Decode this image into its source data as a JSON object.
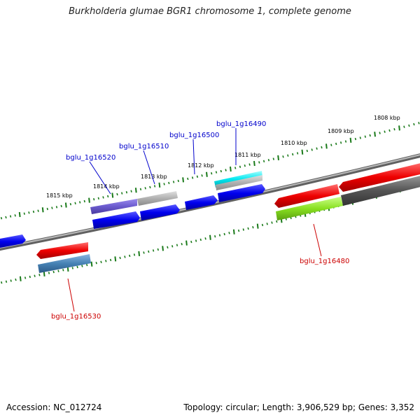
{
  "title": "Burkholderia glumae BGR1 chromosome 1, complete genome",
  "footer": {
    "accession": "Accession: NC_012724",
    "summary": "Topology: circular; Length: 3,906,529 bp; Genes: 3,352"
  },
  "scale_labels": [
    "1808 kbp",
    "1809 kbp",
    "1810 kbp",
    "1811 kbp",
    "1812 kbp",
    "1813 kbp",
    "1814 kbp",
    "1815 kbp"
  ],
  "gene_labels": {
    "g16490": "bglu_1g16490",
    "g16500": "bglu_1g16500",
    "g16510": "bglu_1g16510",
    "g16520": "bglu_1g16520",
    "g16480": "bglu_1g16480",
    "g16530": "bglu_1g16530"
  },
  "colors": {
    "forward_label": "#0000cc",
    "reverse_label": "#cc0000",
    "tick": "#1a7a1a",
    "backbone": "#808080"
  }
}
